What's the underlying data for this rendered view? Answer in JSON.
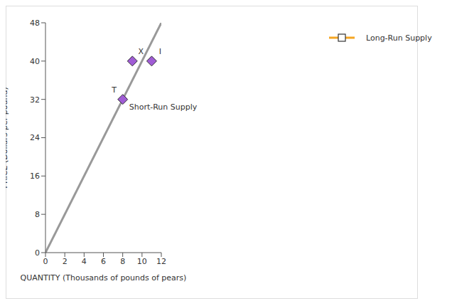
{
  "chart_data": {
    "type": "scatter",
    "xlabel": "QUANTITY (Thousands of pounds of pears)",
    "ylabel": "PRICE (Dollars per pound)",
    "xlim": [
      0,
      12
    ],
    "xticks": [
      0,
      2,
      4,
      6,
      8,
      10,
      12
    ],
    "ylim": [
      0,
      48
    ],
    "yticks": [
      0,
      8,
      16,
      24,
      32,
      40,
      48
    ],
    "grid": false,
    "legend": "right",
    "series": [
      {
        "name": "Short-Run Supply",
        "type": "line",
        "color": "#999999",
        "x": [
          0,
          12
        ],
        "values": [
          0,
          48
        ]
      },
      {
        "name": "Long-Run Supply",
        "type": "line",
        "color": "#f5a623",
        "marker": "square",
        "x": [],
        "values": []
      }
    ],
    "points": {
      "color": "#a05cd5",
      "marker": "diamond",
      "labels": [
        "T",
        "X",
        "I"
      ],
      "x": [
        8,
        9,
        11
      ],
      "values": [
        32,
        40,
        40
      ]
    },
    "annotations": [
      {
        "text": "Short-Run Supply",
        "x": 8.3,
        "y": 30.5
      }
    ]
  }
}
